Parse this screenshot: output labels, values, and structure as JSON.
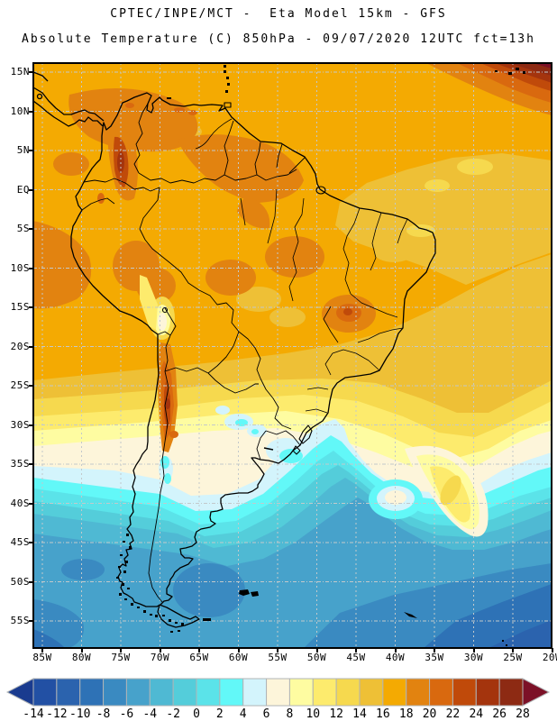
{
  "header": {
    "title_line1": "CPTEC/INPE/MCT -  Eta Model 15km - GFS",
    "title_line2": "Absolute Temperature (C) 850hPa - 09/07/2020 12UTC fct=13h"
  },
  "map": {
    "lat_labels": [
      "15N",
      "10N",
      "5N",
      "EQ",
      "5S",
      "10S",
      "15S",
      "20S",
      "25S",
      "30S",
      "35S",
      "40S",
      "45S",
      "50S",
      "55S"
    ],
    "lon_labels": [
      "85W",
      "80W",
      "75W",
      "70W",
      "65W",
      "60W",
      "55W",
      "50W",
      "45W",
      "40W",
      "35W",
      "30W",
      "25W",
      "20W"
    ],
    "grid_color": "#c3c9cb",
    "frame_color": "#000000",
    "coastline_color": "#000000"
  },
  "colorbar": {
    "tick_labels": [
      "-14",
      "-12",
      "-10",
      "-8",
      "-6",
      "-4",
      "-2",
      "0",
      "2",
      "4",
      "6",
      "8",
      "10",
      "12",
      "14",
      "16",
      "18",
      "20",
      "22",
      "24",
      "26",
      "28"
    ],
    "cell_colors": [
      "#2250a4",
      "#2b63ae",
      "#2e72b6",
      "#3a8ac1",
      "#47a2cb",
      "#4fb9d3",
      "#54cdda",
      "#5be3e9",
      "#62f8f8",
      "#d3f4fc",
      "#fdf5da",
      "#fefca1",
      "#fdeb6d",
      "#f6d94e",
      "#eec036",
      "#f4aa02",
      "#e28310",
      "#d9690f",
      "#c04a0a",
      "#a4340d",
      "#8d2a13"
    ],
    "arrow_left_color": "#1a3b8f",
    "arrow_right_color": "#7c1127",
    "border_color": "#b0b4b6"
  },
  "chart_data": {
    "type": "heatmap",
    "title": "Absolute Temperature (C) 850hPa",
    "model": "Eta Model 15km - GFS",
    "source": "CPTEC/INPE/MCT",
    "valid_date": "09/07/2020",
    "run": "12UTC",
    "forecast": "fct=13h",
    "units": "C",
    "scale_levels": [
      -14,
      -12,
      -10,
      -8,
      -6,
      -4,
      -2,
      0,
      2,
      4,
      6,
      8,
      10,
      12,
      14,
      16,
      18,
      20,
      22,
      24,
      26,
      28
    ],
    "palette": [
      "#1a3b8f",
      "#2250a4",
      "#2b63ae",
      "#2e72b6",
      "#3a8ac1",
      "#47a2cb",
      "#4fb9d3",
      "#54cdda",
      "#5be3e9",
      "#62f8f8",
      "#d3f4fc",
      "#fdf5da",
      "#fefca1",
      "#fdeb6d",
      "#f6d94e",
      "#eec036",
      "#f4aa02",
      "#e28310",
      "#d9690f",
      "#c04a0a",
      "#a4340d",
      "#8d2a13",
      "#7c1127"
    ],
    "x_axis_ticks": [
      "85W",
      "80W",
      "75W",
      "70W",
      "65W",
      "60W",
      "55W",
      "50W",
      "45W",
      "40W",
      "35W",
      "30W",
      "25W",
      "20W"
    ],
    "y_axis_ticks": [
      "15N",
      "10N",
      "5N",
      "EQ",
      "5S",
      "10S",
      "15S",
      "20S",
      "25S",
      "30S",
      "35S",
      "40S",
      "45S",
      "50S",
      "55S"
    ],
    "legend_position": "bottom",
    "grid": true
  }
}
